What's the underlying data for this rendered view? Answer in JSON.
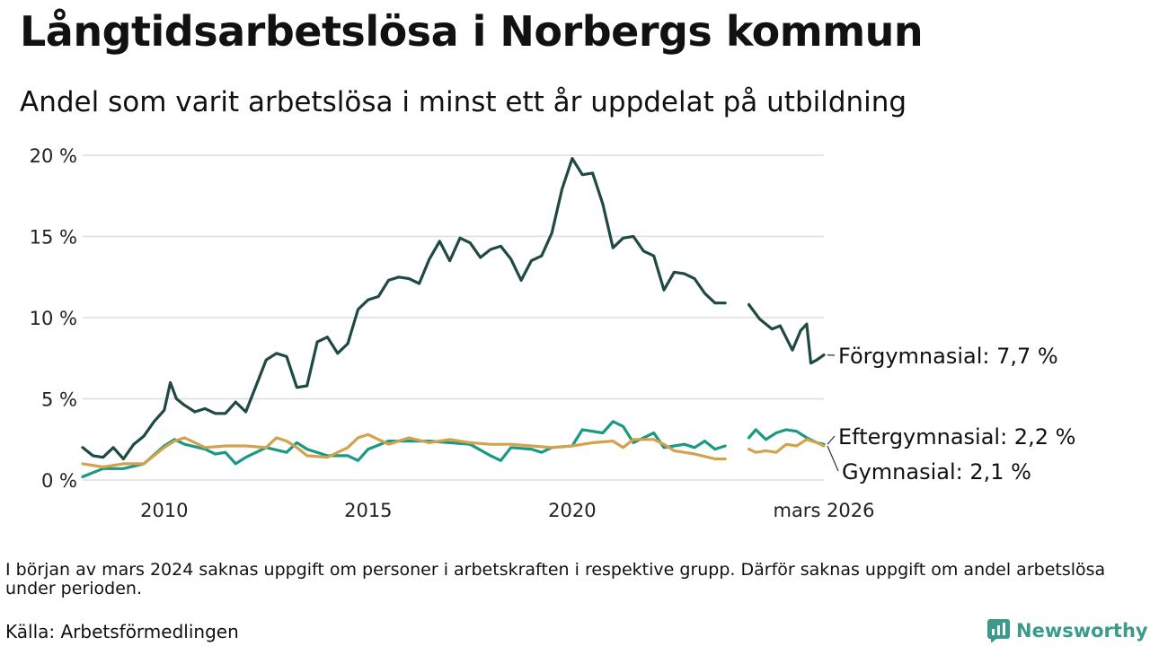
{
  "header": {
    "title": "Långtidsarbetslösa i Norbergs kommun",
    "subtitle": "Andel som varit arbetslösa i minst ett år uppdelat på utbildning"
  },
  "chart_data": {
    "type": "line",
    "title": "Långtidsarbetslösa i Norbergs kommun",
    "subtitle": "Andel som varit arbetslösa i minst ett år uppdelat på utbildning",
    "xlabel": "",
    "ylabel": "",
    "xlim": [
      2008.0,
      2026.17
    ],
    "ylim": [
      0,
      20
    ],
    "grid": true,
    "x_ticks": [
      {
        "value": 2010,
        "label": "2010"
      },
      {
        "value": 2015,
        "label": "2015"
      },
      {
        "value": 2020,
        "label": "2020"
      },
      {
        "value": 2026.17,
        "label": "mars 2026"
      }
    ],
    "y_ticks": [
      {
        "value": 0,
        "label": "0 %"
      },
      {
        "value": 5,
        "label": "5 %"
      },
      {
        "value": 10,
        "label": "10 %"
      },
      {
        "value": 15,
        "label": "15 %"
      },
      {
        "value": 20,
        "label": "20 %"
      }
    ],
    "gap": [
      2024.0,
      2024.33
    ],
    "series": [
      {
        "name": "Förgymnasial",
        "label": "Förgymnasial: 7,7 %",
        "color": "#1f4a43",
        "points": [
          [
            2008.0,
            2.0
          ],
          [
            2008.25,
            1.5
          ],
          [
            2008.5,
            1.4
          ],
          [
            2008.75,
            2.0
          ],
          [
            2009.0,
            1.3
          ],
          [
            2009.25,
            2.2
          ],
          [
            2009.5,
            2.7
          ],
          [
            2009.75,
            3.6
          ],
          [
            2010.0,
            4.3
          ],
          [
            2010.15,
            6.0
          ],
          [
            2010.3,
            5.0
          ],
          [
            2010.5,
            4.6
          ],
          [
            2010.75,
            4.2
          ],
          [
            2011.0,
            4.4
          ],
          [
            2011.25,
            4.1
          ],
          [
            2011.5,
            4.1
          ],
          [
            2011.75,
            4.8
          ],
          [
            2012.0,
            4.2
          ],
          [
            2012.25,
            5.8
          ],
          [
            2012.5,
            7.4
          ],
          [
            2012.75,
            7.8
          ],
          [
            2013.0,
            7.6
          ],
          [
            2013.25,
            5.7
          ],
          [
            2013.5,
            5.8
          ],
          [
            2013.75,
            8.5
          ],
          [
            2014.0,
            8.8
          ],
          [
            2014.25,
            7.8
          ],
          [
            2014.5,
            8.4
          ],
          [
            2014.75,
            10.5
          ],
          [
            2015.0,
            11.1
          ],
          [
            2015.25,
            11.3
          ],
          [
            2015.5,
            12.3
          ],
          [
            2015.75,
            12.5
          ],
          [
            2016.0,
            12.4
          ],
          [
            2016.25,
            12.1
          ],
          [
            2016.5,
            13.6
          ],
          [
            2016.75,
            14.7
          ],
          [
            2017.0,
            13.5
          ],
          [
            2017.25,
            14.9
          ],
          [
            2017.5,
            14.6
          ],
          [
            2017.75,
            13.7
          ],
          [
            2018.0,
            14.2
          ],
          [
            2018.25,
            14.4
          ],
          [
            2018.5,
            13.6
          ],
          [
            2018.75,
            12.3
          ],
          [
            2019.0,
            13.5
          ],
          [
            2019.25,
            13.8
          ],
          [
            2019.5,
            15.2
          ],
          [
            2019.75,
            17.9
          ],
          [
            2020.0,
            19.8
          ],
          [
            2020.25,
            18.8
          ],
          [
            2020.5,
            18.9
          ],
          [
            2020.75,
            17.0
          ],
          [
            2021.0,
            14.3
          ],
          [
            2021.25,
            14.9
          ],
          [
            2021.5,
            15.0
          ],
          [
            2021.75,
            14.1
          ],
          [
            2022.0,
            13.8
          ],
          [
            2022.25,
            11.7
          ],
          [
            2022.5,
            12.8
          ],
          [
            2022.75,
            12.7
          ],
          [
            2023.0,
            12.4
          ],
          [
            2023.25,
            11.5
          ],
          [
            2023.5,
            10.9
          ],
          [
            2023.75,
            10.9
          ],
          [
            2024.33,
            10.8
          ],
          [
            2024.6,
            9.9
          ],
          [
            2024.9,
            9.3
          ],
          [
            2025.1,
            9.5
          ],
          [
            2025.4,
            8.0
          ],
          [
            2025.6,
            9.2
          ],
          [
            2025.75,
            9.6
          ],
          [
            2025.85,
            7.2
          ],
          [
            2026.0,
            7.4
          ],
          [
            2026.17,
            7.7
          ]
        ]
      },
      {
        "name": "Eftergymnasial",
        "label": "Eftergymnasial: 2,2 %",
        "color": "#1a9985",
        "points": [
          [
            2008.0,
            0.2
          ],
          [
            2008.5,
            0.7
          ],
          [
            2009.0,
            0.7
          ],
          [
            2009.5,
            1.0
          ],
          [
            2010.0,
            2.1
          ],
          [
            2010.25,
            2.5
          ],
          [
            2010.5,
            2.2
          ],
          [
            2011.0,
            1.9
          ],
          [
            2011.25,
            1.6
          ],
          [
            2011.5,
            1.7
          ],
          [
            2011.75,
            1.0
          ],
          [
            2012.0,
            1.4
          ],
          [
            2012.5,
            2.0
          ],
          [
            2013.0,
            1.7
          ],
          [
            2013.25,
            2.3
          ],
          [
            2013.5,
            1.9
          ],
          [
            2014.0,
            1.5
          ],
          [
            2014.5,
            1.5
          ],
          [
            2014.75,
            1.2
          ],
          [
            2015.0,
            1.9
          ],
          [
            2015.5,
            2.4
          ],
          [
            2016.0,
            2.4
          ],
          [
            2016.5,
            2.4
          ],
          [
            2017.0,
            2.3
          ],
          [
            2017.5,
            2.2
          ],
          [
            2018.0,
            1.5
          ],
          [
            2018.25,
            1.2
          ],
          [
            2018.5,
            2.0
          ],
          [
            2019.0,
            1.9
          ],
          [
            2019.25,
            1.7
          ],
          [
            2019.5,
            2.0
          ],
          [
            2020.0,
            2.1
          ],
          [
            2020.25,
            3.1
          ],
          [
            2020.5,
            3.0
          ],
          [
            2020.75,
            2.9
          ],
          [
            2021.0,
            3.6
          ],
          [
            2021.25,
            3.3
          ],
          [
            2021.5,
            2.3
          ],
          [
            2022.0,
            2.9
          ],
          [
            2022.25,
            2.0
          ],
          [
            2022.5,
            2.1
          ],
          [
            2022.75,
            2.2
          ],
          [
            2023.0,
            2.0
          ],
          [
            2023.25,
            2.4
          ],
          [
            2023.5,
            1.9
          ],
          [
            2023.75,
            2.1
          ],
          [
            2024.33,
            2.6
          ],
          [
            2024.5,
            3.1
          ],
          [
            2024.75,
            2.5
          ],
          [
            2025.0,
            2.9
          ],
          [
            2025.25,
            3.1
          ],
          [
            2025.5,
            3.0
          ],
          [
            2025.75,
            2.6
          ],
          [
            2026.0,
            2.3
          ],
          [
            2026.17,
            2.2
          ]
        ]
      },
      {
        "name": "Gymnasial",
        "label": "Gymnasial: 2,1 %",
        "color": "#d4a24c",
        "points": [
          [
            2008.0,
            1.0
          ],
          [
            2008.5,
            0.8
          ],
          [
            2009.0,
            1.0
          ],
          [
            2009.5,
            1.0
          ],
          [
            2010.0,
            2.0
          ],
          [
            2010.25,
            2.4
          ],
          [
            2010.5,
            2.6
          ],
          [
            2011.0,
            2.0
          ],
          [
            2011.5,
            2.1
          ],
          [
            2012.0,
            2.1
          ],
          [
            2012.5,
            2.0
          ],
          [
            2012.75,
            2.6
          ],
          [
            2013.0,
            2.4
          ],
          [
            2013.25,
            2.0
          ],
          [
            2013.5,
            1.5
          ],
          [
            2014.0,
            1.4
          ],
          [
            2014.5,
            2.0
          ],
          [
            2014.75,
            2.6
          ],
          [
            2015.0,
            2.8
          ],
          [
            2015.5,
            2.2
          ],
          [
            2016.0,
            2.6
          ],
          [
            2016.5,
            2.3
          ],
          [
            2017.0,
            2.5
          ],
          [
            2017.5,
            2.3
          ],
          [
            2018.0,
            2.2
          ],
          [
            2018.5,
            2.2
          ],
          [
            2019.0,
            2.1
          ],
          [
            2019.5,
            2.0
          ],
          [
            2020.0,
            2.1
          ],
          [
            2020.5,
            2.3
          ],
          [
            2021.0,
            2.4
          ],
          [
            2021.25,
            2.0
          ],
          [
            2021.5,
            2.5
          ],
          [
            2022.0,
            2.5
          ],
          [
            2022.25,
            2.2
          ],
          [
            2022.5,
            1.8
          ],
          [
            2023.0,
            1.6
          ],
          [
            2023.5,
            1.3
          ],
          [
            2023.75,
            1.3
          ],
          [
            2024.33,
            1.9
          ],
          [
            2024.5,
            1.7
          ],
          [
            2024.75,
            1.8
          ],
          [
            2025.0,
            1.7
          ],
          [
            2025.25,
            2.2
          ],
          [
            2025.5,
            2.1
          ],
          [
            2025.75,
            2.5
          ],
          [
            2026.0,
            2.3
          ],
          [
            2026.17,
            2.1
          ]
        ]
      }
    ]
  },
  "footer": {
    "note": "I början av mars 2024 saknas uppgift om personer i arbetskraften i respektive grupp. Därför saknas uppgift om andel arbetslösa under perioden.",
    "source": "Källa: Arbetsförmedlingen",
    "brand": "Newsworthy",
    "brand_color": "#3b9a8a"
  }
}
